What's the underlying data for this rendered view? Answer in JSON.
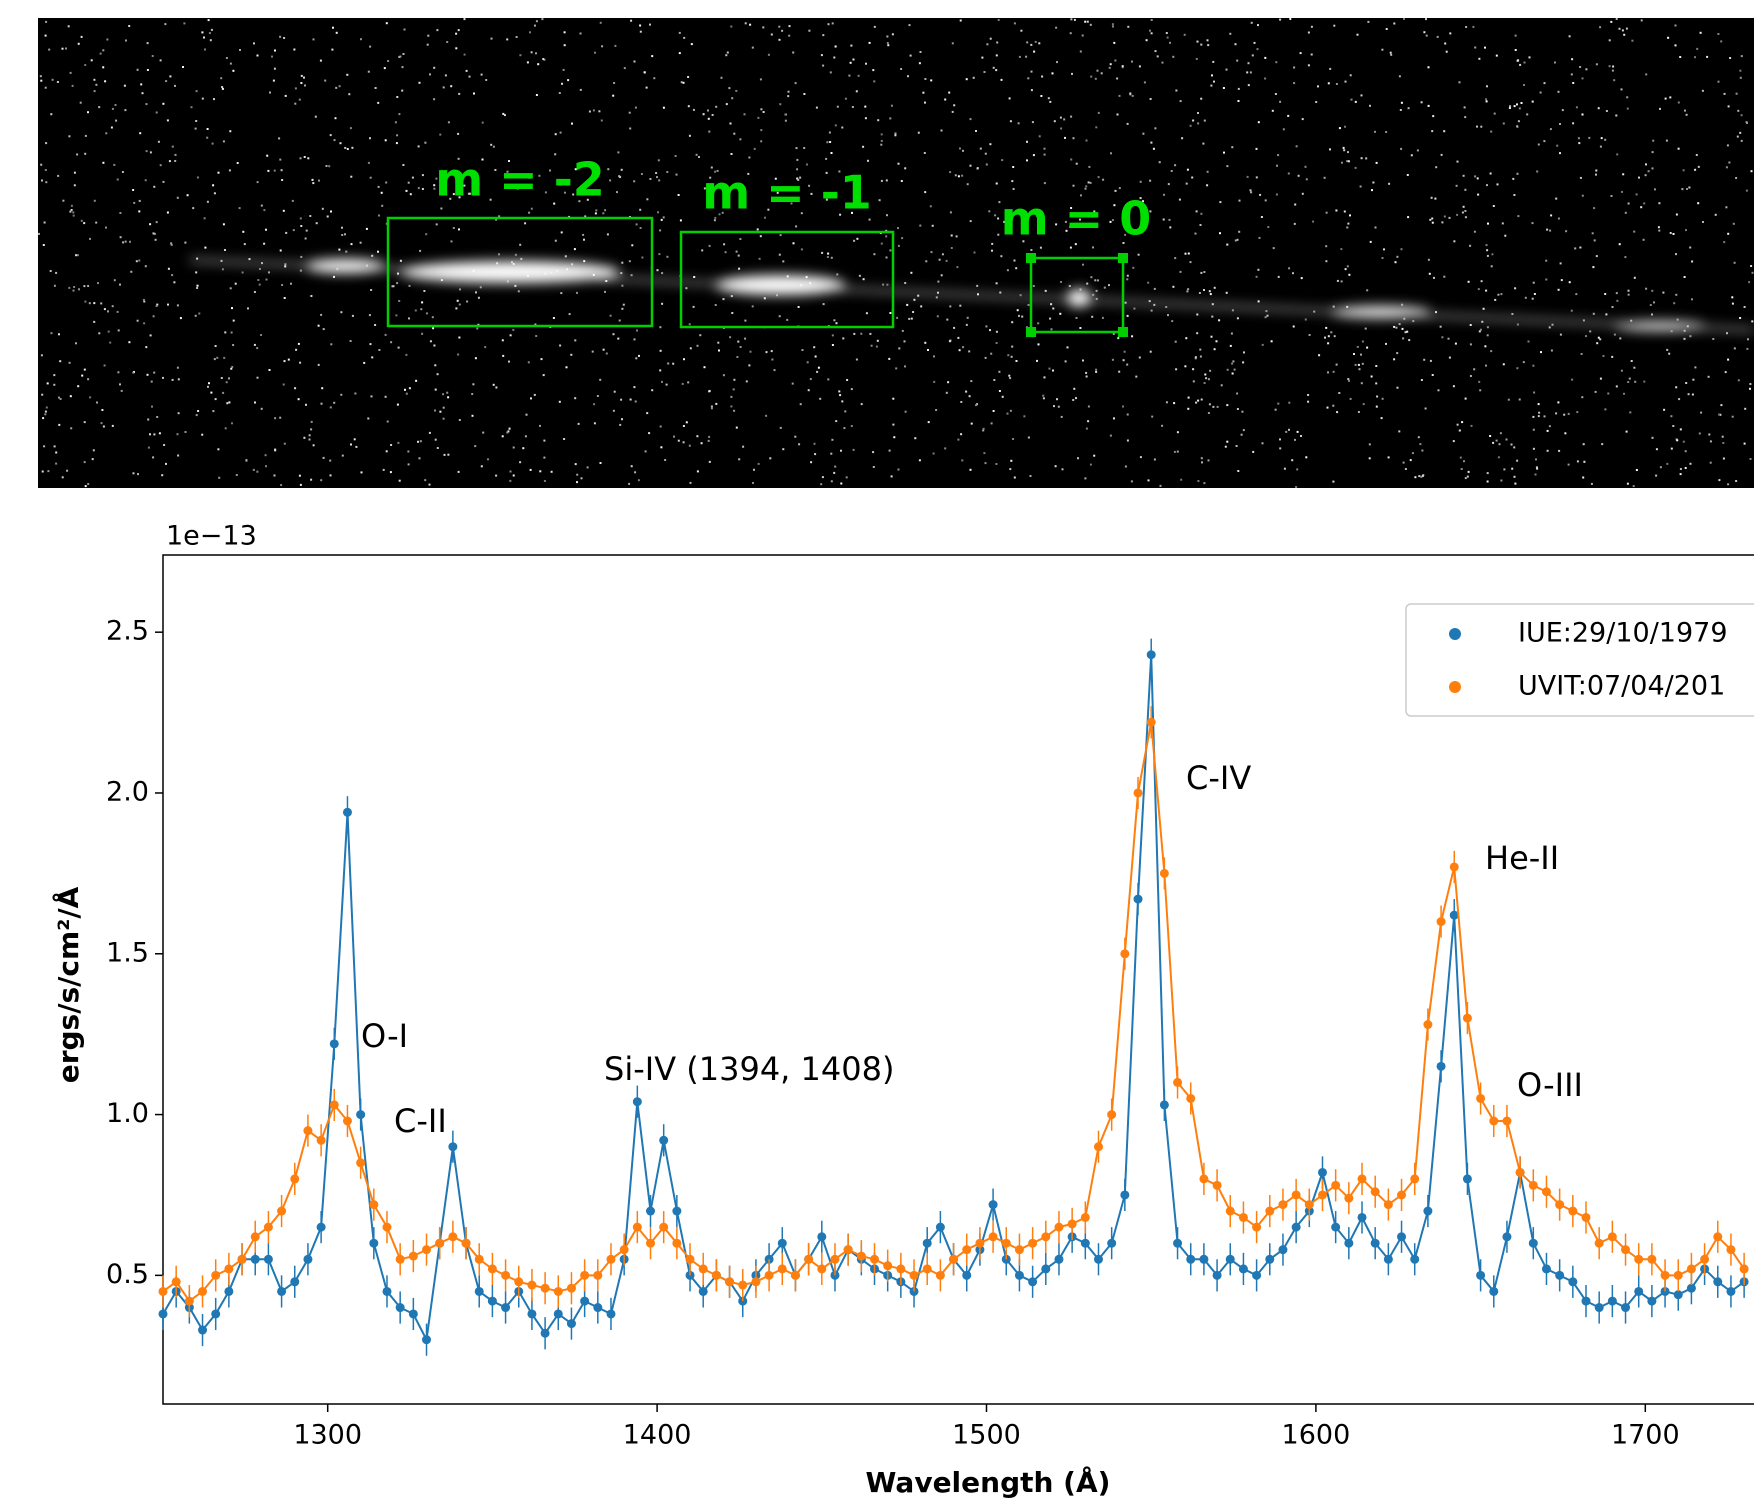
{
  "image_panel": {
    "labels": [
      "m = -2",
      "m = -1",
      "m = 0"
    ]
  },
  "chart_data": {
    "type": "line",
    "offset_label": "1e−13",
    "xlabel": "Wavelength (Å)",
    "ylabel": "ergs/s/cm²/Å",
    "xlim": [
      1250,
      1733
    ],
    "xticks": [
      1300,
      1400,
      1500,
      1600,
      1700
    ],
    "ylim": [
      0.1,
      2.74
    ],
    "yticks": [
      0.5,
      {
        "value": 1,
        "label": "1.0"
      },
      1.5,
      {
        "value": 2,
        "label": "2.0"
      },
      2.5
    ],
    "grid": false,
    "legend": "upper right",
    "annotations": [
      "O-I",
      "C-II",
      "Si-IV (1394, 1408)",
      "C-IV",
      "He-II",
      "O-III"
    ],
    "x": [
      1250,
      1254,
      1258,
      1262,
      1266,
      1270,
      1274,
      1278,
      1282,
      1286,
      1290,
      1294,
      1298,
      1302,
      1306,
      1310,
      1314,
      1318,
      1322,
      1326,
      1330,
      1334,
      1338,
      1342,
      1346,
      1350,
      1354,
      1358,
      1362,
      1366,
      1370,
      1374,
      1378,
      1382,
      1386,
      1390,
      1394,
      1398,
      1402,
      1406,
      1410,
      1414,
      1418,
      1422,
      1426,
      1430,
      1434,
      1438,
      1442,
      1446,
      1450,
      1454,
      1458,
      1462,
      1466,
      1470,
      1474,
      1478,
      1482,
      1486,
      1490,
      1494,
      1498,
      1502,
      1506,
      1510,
      1514,
      1518,
      1522,
      1526,
      1530,
      1534,
      1538,
      1542,
      1546,
      1550,
      1554,
      1558,
      1562,
      1566,
      1570,
      1574,
      1578,
      1582,
      1586,
      1590,
      1594,
      1598,
      1602,
      1606,
      1610,
      1614,
      1618,
      1622,
      1626,
      1630,
      1634,
      1638,
      1642,
      1646,
      1650,
      1654,
      1658,
      1662,
      1666,
      1670,
      1674,
      1678,
      1682,
      1686,
      1690,
      1694,
      1698,
      1702,
      1706,
      1710,
      1714,
      1718,
      1722,
      1726,
      1730
    ],
    "series": [
      {
        "name": "IUE:29/10/1979",
        "color": "#1f77b4",
        "error": 0.05,
        "values": [
          0.38,
          0.45,
          0.4,
          0.33,
          0.38,
          0.45,
          0.55,
          0.55,
          0.55,
          0.45,
          0.48,
          0.55,
          0.65,
          1.22,
          1.94,
          1.0,
          0.6,
          0.45,
          0.4,
          0.38,
          0.3,
          0.6,
          0.9,
          0.6,
          0.45,
          0.42,
          0.4,
          0.45,
          0.38,
          0.32,
          0.38,
          0.35,
          0.42,
          0.4,
          0.38,
          0.55,
          1.04,
          0.7,
          0.92,
          0.7,
          0.5,
          0.45,
          0.5,
          0.48,
          0.42,
          0.5,
          0.55,
          0.6,
          0.5,
          0.55,
          0.62,
          0.5,
          0.58,
          0.55,
          0.52,
          0.5,
          0.48,
          0.45,
          0.6,
          0.65,
          0.55,
          0.5,
          0.58,
          0.72,
          0.55,
          0.5,
          0.48,
          0.52,
          0.55,
          0.62,
          0.6,
          0.55,
          0.6,
          0.75,
          1.67,
          2.43,
          1.03,
          0.6,
          0.55,
          0.55,
          0.5,
          0.55,
          0.52,
          0.5,
          0.55,
          0.58,
          0.65,
          0.7,
          0.82,
          0.65,
          0.6,
          0.68,
          0.6,
          0.55,
          0.62,
          0.55,
          0.7,
          1.15,
          1.62,
          0.8,
          0.5,
          0.45,
          0.62,
          0.82,
          0.6,
          0.52,
          0.5,
          0.48,
          0.42,
          0.4,
          0.42,
          0.4,
          0.45,
          0.42,
          0.45,
          0.44,
          0.46,
          0.52,
          0.48,
          0.45,
          0.48
        ]
      },
      {
        "name": "UVIT:07/04/201",
        "color": "#ff7f0e",
        "error": 0.05,
        "values": [
          0.45,
          0.48,
          0.42,
          0.45,
          0.5,
          0.52,
          0.55,
          0.62,
          0.65,
          0.7,
          0.8,
          0.95,
          0.92,
          1.03,
          0.98,
          0.85,
          0.72,
          0.65,
          0.55,
          0.56,
          0.58,
          0.6,
          0.62,
          0.6,
          0.55,
          0.52,
          0.5,
          0.48,
          0.47,
          0.46,
          0.45,
          0.46,
          0.5,
          0.5,
          0.55,
          0.58,
          0.65,
          0.6,
          0.65,
          0.6,
          0.55,
          0.52,
          0.5,
          0.48,
          0.47,
          0.48,
          0.5,
          0.52,
          0.5,
          0.55,
          0.52,
          0.55,
          0.58,
          0.56,
          0.55,
          0.53,
          0.52,
          0.5,
          0.52,
          0.5,
          0.55,
          0.58,
          0.6,
          0.62,
          0.6,
          0.58,
          0.6,
          0.62,
          0.65,
          0.66,
          0.68,
          0.9,
          1.0,
          1.5,
          2.0,
          2.22,
          1.75,
          1.1,
          1.05,
          0.8,
          0.78,
          0.7,
          0.68,
          0.65,
          0.7,
          0.72,
          0.75,
          0.72,
          0.75,
          0.78,
          0.74,
          0.8,
          0.76,
          0.72,
          0.75,
          0.8,
          1.28,
          1.6,
          1.77,
          1.3,
          1.05,
          0.98,
          0.98,
          0.82,
          0.78,
          0.76,
          0.72,
          0.7,
          0.68,
          0.6,
          0.62,
          0.58,
          0.55,
          0.55,
          0.5,
          0.5,
          0.52,
          0.55,
          0.62,
          0.58,
          0.52
        ]
      }
    ]
  }
}
